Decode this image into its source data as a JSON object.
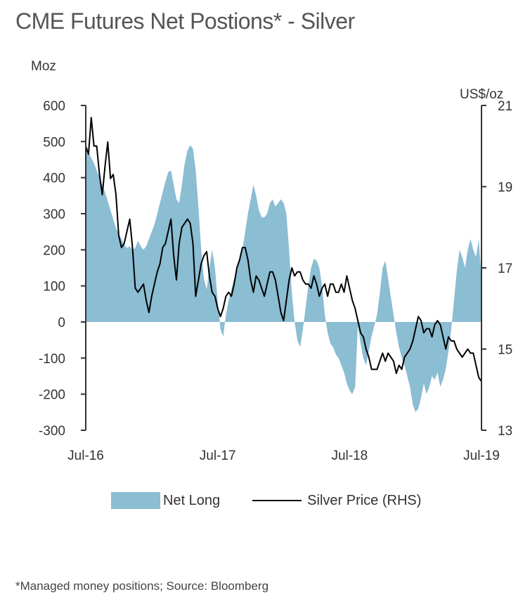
{
  "chart_data": {
    "type": "area+line",
    "title": "CME Futures Net Postions* - Silver",
    "left_axis": {
      "label": "Moz",
      "ylim": [
        -300,
        600
      ],
      "ticks": [
        600,
        500,
        400,
        300,
        200,
        100,
        0,
        -100,
        -200,
        -300
      ]
    },
    "right_axis": {
      "label": "US$/oz",
      "ylim": [
        13,
        21
      ],
      "ticks": [
        21,
        19,
        17,
        15,
        13
      ]
    },
    "x_axis": {
      "range_months": [
        0,
        36
      ],
      "ticks": [
        {
          "m": 0,
          "label": "Jul-16"
        },
        {
          "m": 12,
          "label": "Jul-17"
        },
        {
          "m": 24,
          "label": "Jul-18"
        },
        {
          "m": 36,
          "label": "Jul-19"
        }
      ]
    },
    "x_unit": "months since Jul-2016",
    "series": [
      {
        "name": "Net Long",
        "kind": "area",
        "axis": "left",
        "color": "#8bbdd3",
        "points": [
          [
            0,
            480
          ],
          [
            0.25,
            470
          ],
          [
            0.5,
            455
          ],
          [
            0.75,
            440
          ],
          [
            1,
            420
          ],
          [
            1.25,
            400
          ],
          [
            1.5,
            380
          ],
          [
            1.75,
            360
          ],
          [
            2,
            335
          ],
          [
            2.25,
            310
          ],
          [
            2.5,
            285
          ],
          [
            2.75,
            260
          ],
          [
            3,
            245
          ],
          [
            3.25,
            230
          ],
          [
            3.5,
            215
          ],
          [
            3.75,
            205
          ],
          [
            4,
            210
          ],
          [
            4.25,
            200
          ],
          [
            4.5,
            205
          ],
          [
            4.75,
            225
          ],
          [
            5,
            210
          ],
          [
            5.25,
            200
          ],
          [
            5.5,
            210
          ],
          [
            5.75,
            230
          ],
          [
            6,
            250
          ],
          [
            6.25,
            270
          ],
          [
            6.5,
            300
          ],
          [
            6.75,
            330
          ],
          [
            7,
            360
          ],
          [
            7.25,
            390
          ],
          [
            7.5,
            415
          ],
          [
            7.75,
            420
          ],
          [
            8,
            380
          ],
          [
            8.25,
            340
          ],
          [
            8.5,
            330
          ],
          [
            8.75,
            380
          ],
          [
            9,
            440
          ],
          [
            9.25,
            475
          ],
          [
            9.5,
            490
          ],
          [
            9.75,
            480
          ],
          [
            10,
            420
          ],
          [
            10.25,
            320
          ],
          [
            10.5,
            200
          ],
          [
            10.75,
            120
          ],
          [
            11,
            90
          ],
          [
            11.25,
            150
          ],
          [
            11.5,
            200
          ],
          [
            11.75,
            150
          ],
          [
            12,
            60
          ],
          [
            12.25,
            -20
          ],
          [
            12.5,
            -40
          ],
          [
            12.75,
            20
          ],
          [
            13,
            60
          ],
          [
            13.25,
            90
          ],
          [
            13.5,
            120
          ],
          [
            13.75,
            140
          ],
          [
            14,
            170
          ],
          [
            14.25,
            200
          ],
          [
            14.5,
            250
          ],
          [
            14.75,
            300
          ],
          [
            15,
            340
          ],
          [
            15.25,
            380
          ],
          [
            15.5,
            350
          ],
          [
            15.75,
            310
          ],
          [
            16,
            290
          ],
          [
            16.25,
            290
          ],
          [
            16.5,
            300
          ],
          [
            16.75,
            330
          ],
          [
            17,
            340
          ],
          [
            17.25,
            320
          ],
          [
            17.5,
            330
          ],
          [
            17.75,
            340
          ],
          [
            18,
            330
          ],
          [
            18.25,
            300
          ],
          [
            18.5,
            200
          ],
          [
            18.75,
            80
          ],
          [
            19,
            0
          ],
          [
            19.25,
            -50
          ],
          [
            19.5,
            -70
          ],
          [
            19.75,
            -20
          ],
          [
            20,
            40
          ],
          [
            20.25,
            100
          ],
          [
            20.5,
            150
          ],
          [
            20.75,
            175
          ],
          [
            21,
            170
          ],
          [
            21.25,
            150
          ],
          [
            21.5,
            100
          ],
          [
            21.75,
            20
          ],
          [
            22,
            -30
          ],
          [
            22.25,
            -60
          ],
          [
            22.5,
            -70
          ],
          [
            22.75,
            -90
          ],
          [
            23,
            -100
          ],
          [
            23.25,
            -120
          ],
          [
            23.5,
            -140
          ],
          [
            23.75,
            -170
          ],
          [
            24,
            -190
          ],
          [
            24.25,
            -200
          ],
          [
            24.5,
            -180
          ],
          [
            24.75,
            -10
          ],
          [
            25,
            -60
          ],
          [
            25.25,
            -100
          ],
          [
            25.5,
            -120
          ],
          [
            25.75,
            -80
          ],
          [
            26,
            -40
          ],
          [
            26.25,
            -10
          ],
          [
            26.5,
            20
          ],
          [
            26.75,
            80
          ],
          [
            27,
            150
          ],
          [
            27.25,
            170
          ],
          [
            27.5,
            120
          ],
          [
            27.75,
            70
          ],
          [
            28,
            20
          ],
          [
            28.25,
            -30
          ],
          [
            28.5,
            -70
          ],
          [
            28.75,
            -100
          ],
          [
            29,
            -120
          ],
          [
            29.25,
            -150
          ],
          [
            29.5,
            -180
          ],
          [
            29.75,
            -230
          ],
          [
            30,
            -250
          ],
          [
            30.25,
            -240
          ],
          [
            30.5,
            -210
          ],
          [
            30.75,
            -170
          ],
          [
            31,
            -200
          ],
          [
            31.25,
            -180
          ],
          [
            31.5,
            -150
          ],
          [
            31.75,
            -160
          ],
          [
            32,
            -140
          ],
          [
            32.25,
            -180
          ],
          [
            32.5,
            -160
          ],
          [
            32.75,
            -130
          ],
          [
            33,
            -80
          ],
          [
            33.25,
            -20
          ],
          [
            33.5,
            60
          ],
          [
            33.75,
            140
          ],
          [
            34,
            200
          ],
          [
            34.25,
            180
          ],
          [
            34.5,
            150
          ],
          [
            34.75,
            200
          ],
          [
            35,
            230
          ],
          [
            35.25,
            200
          ],
          [
            35.5,
            180
          ],
          [
            35.75,
            230
          ],
          [
            36,
            120
          ]
        ]
      },
      {
        "name": "Silver Price (RHS)",
        "kind": "line",
        "axis": "right",
        "color": "#000000",
        "points": [
          [
            0,
            20.0
          ],
          [
            0.25,
            19.8
          ],
          [
            0.5,
            20.7
          ],
          [
            0.75,
            20.0
          ],
          [
            1,
            20.0
          ],
          [
            1.25,
            19.3
          ],
          [
            1.5,
            18.8
          ],
          [
            1.75,
            19.5
          ],
          [
            2,
            20.1
          ],
          [
            2.25,
            19.2
          ],
          [
            2.5,
            19.3
          ],
          [
            2.75,
            18.8
          ],
          [
            3,
            17.8
          ],
          [
            3.25,
            17.5
          ],
          [
            3.5,
            17.6
          ],
          [
            3.75,
            17.9
          ],
          [
            4,
            18.2
          ],
          [
            4.25,
            17.5
          ],
          [
            4.5,
            16.5
          ],
          [
            4.75,
            16.4
          ],
          [
            5,
            16.5
          ],
          [
            5.25,
            16.6
          ],
          [
            5.5,
            16.2
          ],
          [
            5.75,
            15.9
          ],
          [
            6,
            16.3
          ],
          [
            6.25,
            16.6
          ],
          [
            6.5,
            16.9
          ],
          [
            6.75,
            17.1
          ],
          [
            7,
            17.5
          ],
          [
            7.25,
            17.6
          ],
          [
            7.5,
            17.9
          ],
          [
            7.75,
            18.2
          ],
          [
            8,
            17.3
          ],
          [
            8.25,
            16.7
          ],
          [
            8.5,
            17.6
          ],
          [
            8.75,
            18.0
          ],
          [
            9,
            18.1
          ],
          [
            9.25,
            18.2
          ],
          [
            9.5,
            18.1
          ],
          [
            9.75,
            17.6
          ],
          [
            10,
            16.3
          ],
          [
            10.25,
            16.7
          ],
          [
            10.5,
            17.1
          ],
          [
            10.75,
            17.3
          ],
          [
            11,
            17.4
          ],
          [
            11.25,
            16.8
          ],
          [
            11.5,
            16.4
          ],
          [
            11.75,
            16.3
          ],
          [
            12,
            16.0
          ],
          [
            12.25,
            15.8
          ],
          [
            12.5,
            16.0
          ],
          [
            12.75,
            16.3
          ],
          [
            13,
            16.4
          ],
          [
            13.25,
            16.3
          ],
          [
            13.5,
            16.6
          ],
          [
            13.75,
            17.0
          ],
          [
            14,
            17.2
          ],
          [
            14.25,
            17.5
          ],
          [
            14.5,
            17.5
          ],
          [
            14.75,
            17.2
          ],
          [
            15,
            16.7
          ],
          [
            15.25,
            16.4
          ],
          [
            15.5,
            16.8
          ],
          [
            15.75,
            16.7
          ],
          [
            16,
            16.5
          ],
          [
            16.25,
            16.3
          ],
          [
            16.5,
            16.6
          ],
          [
            16.75,
            16.9
          ],
          [
            17,
            16.9
          ],
          [
            17.25,
            16.7
          ],
          [
            17.5,
            16.3
          ],
          [
            17.75,
            15.9
          ],
          [
            18,
            15.7
          ],
          [
            18.25,
            16.2
          ],
          [
            18.5,
            16.7
          ],
          [
            18.75,
            17.0
          ],
          [
            19,
            16.8
          ],
          [
            19.25,
            16.9
          ],
          [
            19.5,
            16.9
          ],
          [
            19.75,
            16.7
          ],
          [
            20,
            16.6
          ],
          [
            20.25,
            16.6
          ],
          [
            20.5,
            16.5
          ],
          [
            20.75,
            16.8
          ],
          [
            21,
            16.6
          ],
          [
            21.25,
            16.3
          ],
          [
            21.5,
            16.5
          ],
          [
            21.75,
            16.6
          ],
          [
            22,
            16.3
          ],
          [
            22.25,
            16.6
          ],
          [
            22.5,
            16.6
          ],
          [
            22.75,
            16.4
          ],
          [
            23,
            16.4
          ],
          [
            23.25,
            16.6
          ],
          [
            23.5,
            16.4
          ],
          [
            23.75,
            16.8
          ],
          [
            24,
            16.5
          ],
          [
            24.25,
            16.2
          ],
          [
            24.5,
            16.0
          ],
          [
            24.75,
            15.7
          ],
          [
            25,
            15.4
          ],
          [
            25.25,
            15.3
          ],
          [
            25.5,
            15.0
          ],
          [
            25.75,
            14.8
          ],
          [
            26,
            14.5
          ],
          [
            26.25,
            14.5
          ],
          [
            26.5,
            14.5
          ],
          [
            26.75,
            14.7
          ],
          [
            27,
            14.9
          ],
          [
            27.25,
            14.7
          ],
          [
            27.5,
            14.9
          ],
          [
            27.75,
            14.8
          ],
          [
            28,
            14.7
          ],
          [
            28.25,
            14.4
          ],
          [
            28.5,
            14.6
          ],
          [
            28.75,
            14.5
          ],
          [
            29,
            14.8
          ],
          [
            29.25,
            14.9
          ],
          [
            29.5,
            15.0
          ],
          [
            29.75,
            15.2
          ],
          [
            30,
            15.5
          ],
          [
            30.25,
            15.8
          ],
          [
            30.5,
            15.7
          ],
          [
            30.75,
            15.4
          ],
          [
            31,
            15.5
          ],
          [
            31.25,
            15.5
          ],
          [
            31.5,
            15.3
          ],
          [
            31.75,
            15.6
          ],
          [
            32,
            15.7
          ],
          [
            32.25,
            15.6
          ],
          [
            32.5,
            15.3
          ],
          [
            32.75,
            15.0
          ],
          [
            33,
            15.3
          ],
          [
            33.25,
            15.2
          ],
          [
            33.5,
            15.2
          ],
          [
            33.75,
            15.0
          ],
          [
            34,
            14.9
          ],
          [
            34.25,
            14.8
          ],
          [
            34.5,
            14.9
          ],
          [
            34.75,
            15.0
          ],
          [
            35,
            14.9
          ],
          [
            35.25,
            14.9
          ],
          [
            35.5,
            14.6
          ],
          [
            35.75,
            14.3
          ],
          [
            36,
            14.2
          ]
        ]
      }
    ],
    "legend": {
      "position": "bottom-center",
      "entries": [
        "Net Long",
        "Silver Price (RHS)"
      ]
    },
    "grid": false
  },
  "footnote": "*Managed money positions; Source: Bloomberg"
}
